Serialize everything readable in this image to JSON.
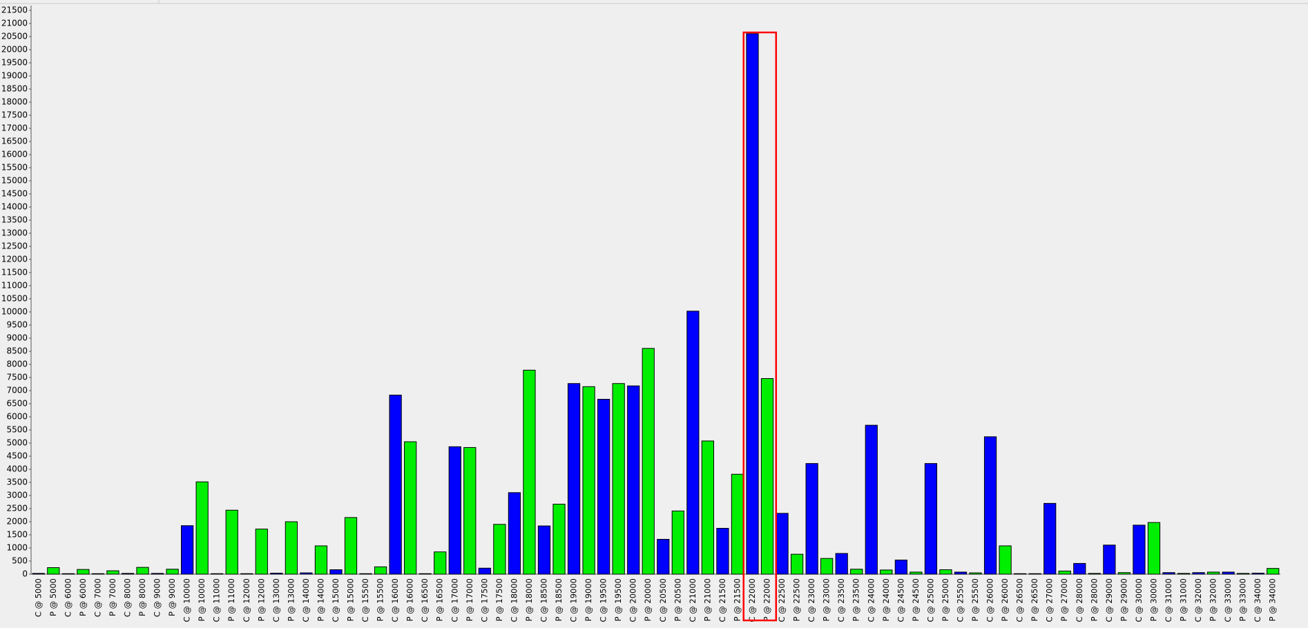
{
  "chart_data": {
    "type": "bar",
    "categories": [
      "C @ 5000",
      "P @ 5000",
      "C @ 6000",
      "P @ 6000",
      "C @ 7000",
      "P @ 7000",
      "C @ 8000",
      "P @ 8000",
      "C @ 9000",
      "P @ 9000",
      "C @ 10000",
      "P @ 10000",
      "C @ 11000",
      "P @ 11000",
      "C @ 12000",
      "P @ 12000",
      "C @ 13000",
      "P @ 13000",
      "C @ 14000",
      "P @ 14000",
      "C @ 15000",
      "P @ 15000",
      "C @ 15500",
      "P @ 15500",
      "C @ 16000",
      "P @ 16000",
      "C @ 16500",
      "P @ 16500",
      "C @ 17000",
      "P @ 17000",
      "C @ 17500",
      "P @ 17500",
      "C @ 18000",
      "P @ 18000",
      "C @ 18500",
      "P @ 18500",
      "C @ 19000",
      "P @ 19000",
      "C @ 19500",
      "P @ 19500",
      "C @ 20000",
      "P @ 20000",
      "C @ 20500",
      "P @ 20500",
      "C @ 21000",
      "P @ 21000",
      "C @ 21500",
      "P @ 21500",
      "C @ 22000",
      "P @ 22000",
      "C @ 22500",
      "P @ 22500",
      "C @ 23000",
      "P @ 23000",
      "C @ 23500",
      "P @ 23500",
      "C @ 24000",
      "P @ 24000",
      "C @ 24500",
      "P @ 24500",
      "C @ 25000",
      "P @ 25000",
      "C @ 25500",
      "P @ 25500",
      "C @ 26000",
      "P @ 26000",
      "C @ 26500",
      "P @ 26500",
      "C @ 27000",
      "P @ 27000",
      "C @ 28000",
      "P @ 28000",
      "C @ 29000",
      "P @ 29000",
      "C @ 30000",
      "P @ 30000",
      "C @ 31000",
      "P @ 31000",
      "C @ 32000",
      "P @ 32000",
      "C @ 33000",
      "P @ 33000",
      "C @ 34000",
      "P @ 34000"
    ],
    "values": [
      30,
      250,
      20,
      180,
      20,
      130,
      30,
      260,
      30,
      190,
      1850,
      3520,
      20,
      2440,
      20,
      1720,
      40,
      2000,
      50,
      1080,
      170,
      2160,
      20,
      280,
      6830,
      5050,
      20,
      850,
      4860,
      4830,
      230,
      1900,
      3110,
      7780,
      1840,
      2670,
      7270,
      7150,
      6670,
      7270,
      7180,
      8610,
      1330,
      2410,
      10030,
      5080,
      1750,
      3810,
      20610,
      7460,
      2320,
      760,
      4220,
      600,
      790,
      190,
      5680,
      160,
      540,
      80,
      4220,
      170,
      80,
      50,
      5240,
      1080,
      20,
      20,
      2700,
      120,
      410,
      30,
      1110,
      60,
      1870,
      1970,
      60,
      30,
      60,
      80,
      80,
      30,
      40,
      220
    ],
    "bar_colors": [
      "#0000ff",
      "#00ee00"
    ],
    "ylim": [
      0,
      21500
    ],
    "yticks": [
      0,
      500,
      1000,
      1500,
      2000,
      2500,
      3000,
      3500,
      4000,
      4500,
      5000,
      5500,
      6000,
      6500,
      7000,
      7500,
      8000,
      8500,
      9000,
      9500,
      10000,
      10500,
      11000,
      11500,
      12000,
      12500,
      13000,
      13500,
      14000,
      14500,
      15000,
      15500,
      16000,
      16500,
      17000,
      17500,
      18000,
      18500,
      19000,
      19500,
      20000,
      20500,
      21000,
      21500
    ]
  }
}
